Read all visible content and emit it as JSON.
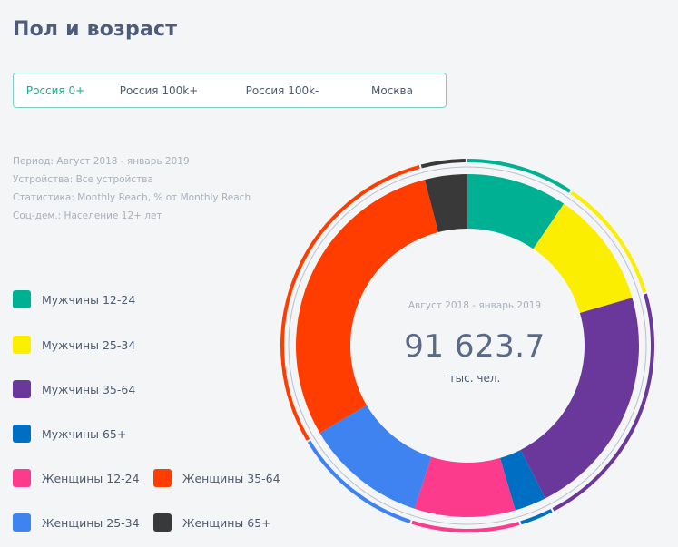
{
  "page": {
    "title": "Пол и возраст"
  },
  "tabs": [
    {
      "label": "Россия 0+",
      "active": true
    },
    {
      "label": "Россия 100k+",
      "active": false
    },
    {
      "label": "Россия 100k-",
      "active": false
    },
    {
      "label": "Москва",
      "active": false
    }
  ],
  "meta": {
    "period": "Период: Август 2018 - январь 2019",
    "devices": "Устройства: Все устройства",
    "statistics": "Статистика: Monthly Reach, % от Monthly Reach",
    "socdem": "Соц-дем.: Население 12+ лет"
  },
  "legend": [
    {
      "label": "Мужчины 12-24",
      "color": "#00b093"
    },
    {
      "label": "Мужчины 25-34",
      "color": "#fbee00"
    },
    {
      "label": "Мужчины 35-64",
      "color": "#6a379a"
    },
    {
      "label": "Мужчины 65+",
      "color": "#006ec2"
    },
    {
      "label": "Женщины 12-24",
      "color": "#fc3b8d"
    },
    {
      "label": "Женщины 25-34",
      "color": "#3e83f0"
    },
    {
      "label": "Женщины 35-64",
      "color": "#ff3d00"
    },
    {
      "label": "Женщины 65+",
      "color": "#393939"
    }
  ],
  "center": {
    "period": "Август 2018 - январь 2019",
    "value": "91 623.7",
    "unit": "тыс. чел."
  },
  "chart_data": {
    "type": "pie",
    "categories": [
      "Мужчины 12-24",
      "Мужчины 25-34",
      "Мужчины 35-64",
      "Мужчины 65+",
      "Женщины 12-24",
      "Женщины 25-34",
      "Женщины 35-64",
      "Женщины 65+"
    ],
    "values": [
      9.5,
      11.0,
      22.0,
      3.0,
      9.5,
      11.5,
      29.5,
      4.0
    ],
    "colors": [
      "#00b093",
      "#fbee00",
      "#6a379a",
      "#006ec2",
      "#fc3b8d",
      "#3e83f0",
      "#ff3d00",
      "#393939"
    ]
  }
}
